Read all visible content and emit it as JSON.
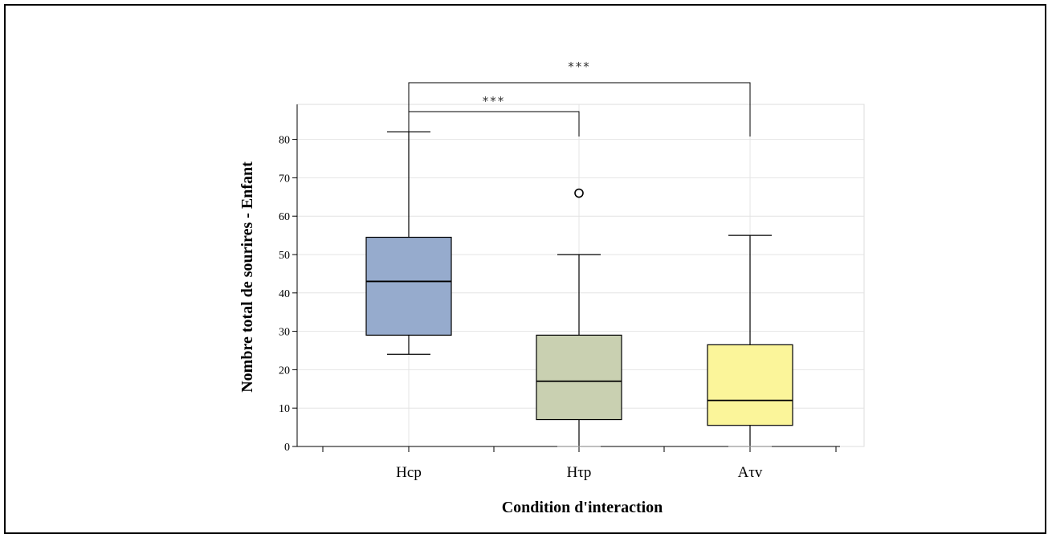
{
  "chart_data": {
    "type": "box",
    "title": "",
    "xlabel": "Condition d'interaction",
    "ylabel": "Nombre total de sourires - Enfant",
    "ylim": [
      0,
      88
    ],
    "yticks": [
      0,
      10,
      20,
      30,
      40,
      50,
      60,
      70,
      80
    ],
    "grid": true,
    "categories": [
      "Hcp",
      "Hτp",
      "Aτv"
    ],
    "boxes": [
      {
        "category": "Hcp",
        "min": 24,
        "q1": 29,
        "median": 43,
        "q3": 54.5,
        "max": 82,
        "outliers": [],
        "color": "#96abcd"
      },
      {
        "category": "Hτp",
        "min": 0,
        "q1": 7,
        "median": 17,
        "q3": 29,
        "max": 50,
        "outliers": [
          66
        ],
        "color": "#c9d0b1"
      },
      {
        "category": "Aτv",
        "min": 0,
        "q1": 5.5,
        "median": 12,
        "q3": 26.5,
        "max": 55,
        "outliers": [],
        "color": "#fbf59a"
      }
    ],
    "annotations": [
      {
        "from": "Hcp",
        "to": "Hτp",
        "label": "***"
      },
      {
        "from": "Hcp",
        "to": "Aτv",
        "label": "***"
      }
    ]
  }
}
